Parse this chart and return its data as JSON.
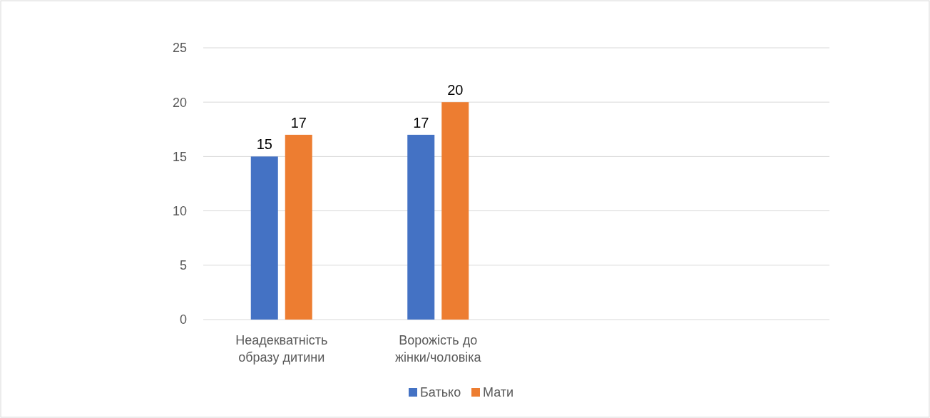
{
  "chart_data": {
    "type": "bar",
    "categories": [
      "Неадекватність образу дитини",
      "Ворожість до жінки/чоловіка",
      null,
      null
    ],
    "series": [
      {
        "name": "Батько",
        "color": "#4472c4",
        "values": [
          15,
          17,
          null,
          null
        ]
      },
      {
        "name": "Мати",
        "color": "#ed7d31",
        "values": [
          17,
          20,
          null,
          null
        ]
      }
    ],
    "ylim": [
      0,
      25
    ],
    "yticks": [
      0,
      5,
      10,
      15,
      20,
      25
    ],
    "grid": "y",
    "legend": "bottom",
    "data_labels": true
  }
}
